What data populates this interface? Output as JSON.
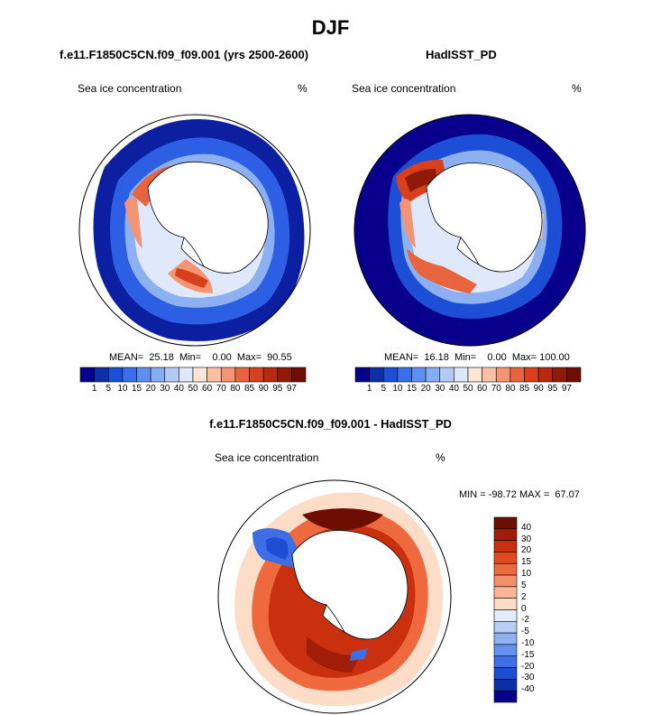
{
  "figure": {
    "title": "DJF"
  },
  "panels": {
    "model": {
      "title": "f.e11.F1850C5CN.f09_f09.001 (yrs 2500-2600)",
      "variable": "Sea ice concentration",
      "units": "%",
      "stats": "MEAN=  25.18  Min=    0.00  Max=  90.55"
    },
    "obs": {
      "title": "HadISST_PD",
      "variable": "Sea ice concentration",
      "units": "%",
      "stats": "MEAN=  16.18  Min=    0.00  Max= 100.00"
    },
    "diff": {
      "title": "f.e11.F1850C5CN.f09_f09.001 - HadISST_PD",
      "variable": "Sea ice concentration",
      "units": "%",
      "stats": "MIN = -98.72 MAX =  67.07"
    }
  },
  "colorbars": {
    "concentration": {
      "labels": [
        "1",
        "5",
        "10",
        "15",
        "20",
        "30",
        "40",
        "50",
        "60",
        "70",
        "80",
        "85",
        "90",
        "95",
        "97"
      ],
      "colors": [
        "#08008c",
        "#0c2fa8",
        "#1d4fd6",
        "#3a6fea",
        "#5e8ff0",
        "#86acf2",
        "#b2caf5",
        "#dde9fa",
        "#fde5d8",
        "#f9c0a3",
        "#f39572",
        "#e8643f",
        "#d8401c",
        "#b82a0e",
        "#8f1a07",
        "#6e0e03"
      ]
    },
    "difference": {
      "labels": [
        "40",
        "30",
        "20",
        "15",
        "10",
        "5",
        "2",
        "0",
        "-2",
        "-5",
        "-10",
        "-15",
        "-20",
        "-30",
        "-40"
      ],
      "colors": [
        "#6e0e03",
        "#a01e07",
        "#c8300e",
        "#e04a1e",
        "#ee6a3e",
        "#f4906a",
        "#f8b898",
        "#fddcc8",
        "#e2edfb",
        "#b8cff5",
        "#8fb2f2",
        "#6591ef",
        "#3d6ee6",
        "#1e4dd2",
        "#0d2fa5",
        "#08008c"
      ]
    }
  }
}
